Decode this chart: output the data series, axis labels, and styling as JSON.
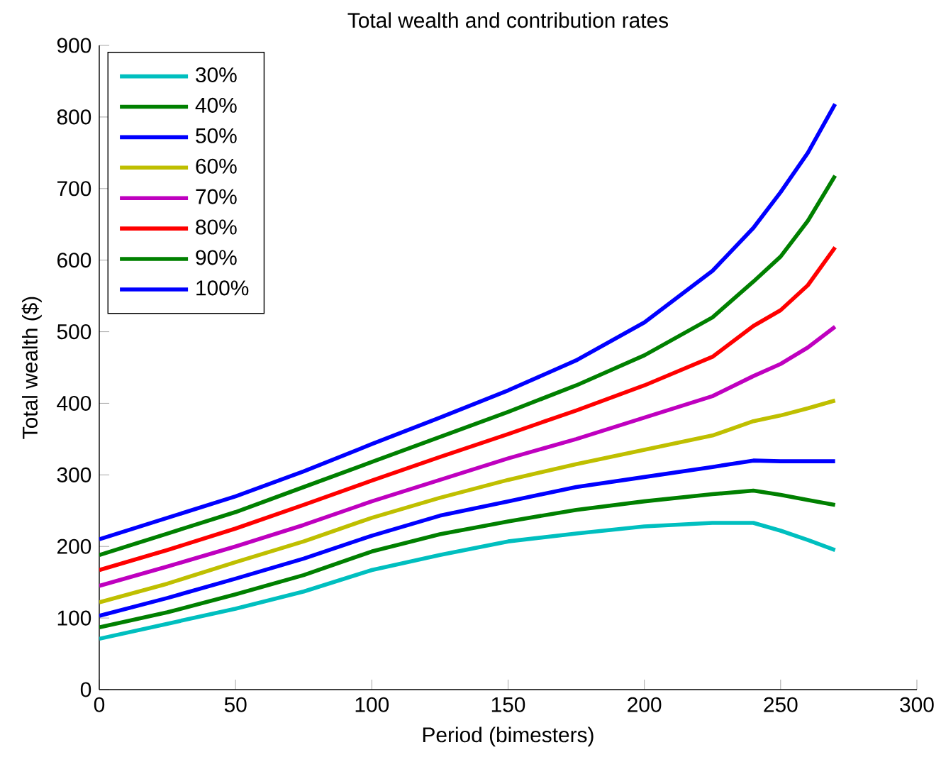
{
  "chart_data": {
    "type": "line",
    "title": "Total wealth and contribution rates",
    "xlabel": "Period (bimesters)",
    "ylabel": "Total wealth ($)",
    "x": [
      0,
      25,
      50,
      75,
      100,
      125,
      150,
      175,
      200,
      225,
      240,
      250,
      260,
      270
    ],
    "xlim": [
      0,
      300
    ],
    "ylim": [
      0,
      900
    ],
    "xticks": [
      0,
      50,
      100,
      150,
      200,
      250,
      300
    ],
    "yticks": [
      0,
      100,
      200,
      300,
      400,
      500,
      600,
      700,
      800,
      900
    ],
    "grid": false,
    "legend": "top left",
    "marker": "none",
    "line_style": "solid",
    "series": [
      {
        "name": "30%",
        "color": "#00bfbf",
        "values": [
          71,
          92,
          113,
          137,
          167,
          188,
          207,
          218,
          228,
          233,
          233,
          222,
          209,
          195
        ]
      },
      {
        "name": "40%",
        "color": "#008000",
        "values": [
          87,
          108,
          133,
          160,
          193,
          217,
          235,
          251,
          263,
          273,
          278,
          272,
          265,
          258
        ]
      },
      {
        "name": "50%",
        "color": "#0000ff",
        "values": [
          103,
          128,
          155,
          183,
          215,
          243,
          263,
          283,
          297,
          311,
          320,
          319,
          319,
          319
        ]
      },
      {
        "name": "60%",
        "color": "#bfbf00",
        "values": [
          122,
          148,
          178,
          207,
          240,
          268,
          293,
          315,
          335,
          355,
          375,
          383,
          393,
          404
        ]
      },
      {
        "name": "70%",
        "color": "#bf00bf",
        "values": [
          145,
          172,
          200,
          230,
          263,
          293,
          323,
          350,
          380,
          410,
          438,
          455,
          478,
          507
        ]
      },
      {
        "name": "80%",
        "color": "#ff0000",
        "values": [
          167,
          195,
          225,
          258,
          292,
          325,
          357,
          390,
          425,
          465,
          508,
          530,
          565,
          618
        ]
      },
      {
        "name": "90%",
        "color": "#008000",
        "values": [
          188,
          218,
          248,
          283,
          318,
          353,
          388,
          425,
          467,
          520,
          570,
          605,
          655,
          718
        ]
      },
      {
        "name": "100%",
        "color": "#0000ff",
        "values": [
          210,
          240,
          270,
          305,
          343,
          380,
          418,
          460,
          513,
          585,
          645,
          695,
          750,
          818
        ]
      }
    ]
  }
}
